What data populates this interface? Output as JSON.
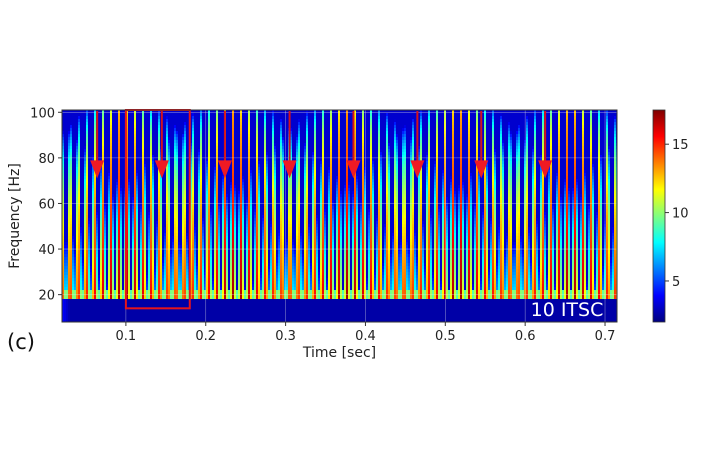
{
  "panel_label": "(c)",
  "chart_data": {
    "type": "heatmap",
    "title": "",
    "xlabel": "Time [sec]",
    "ylabel": "Frequency [Hz]",
    "annotation": "10 ITSC",
    "xlim": [
      0.02,
      0.715
    ],
    "ylim": [
      8,
      101
    ],
    "x_ticks": [
      0.1,
      0.2,
      0.3,
      0.4,
      0.5,
      0.6,
      0.7
    ],
    "x_tick_labels": [
      "0.1",
      "0.2",
      "0.3",
      "0.4",
      "0.5",
      "0.6",
      "0.7"
    ],
    "y_ticks": [
      20,
      40,
      60,
      80,
      100
    ],
    "y_tick_labels": [
      "20",
      "40",
      "60",
      "80",
      "100"
    ],
    "colorbar": {
      "range": [
        2,
        17.5
      ],
      "ticks": [
        5,
        10,
        15
      ],
      "tick_labels": [
        "5",
        "10",
        "15"
      ],
      "colormap": "jet"
    },
    "spectrogram": {
      "stripe_period_sec": 0.0102,
      "stripe_start_sec": 0.025,
      "freq_cutoff_hz": 19,
      "peak_intensity": 17,
      "floor_intensity": 2
    },
    "arrow_times_sec": [
      0.064,
      0.145,
      0.224,
      0.305,
      0.385,
      0.465,
      0.545,
      0.625
    ],
    "arrow_tip_freq_hz": 71,
    "highlight_box": {
      "t_start": 0.1,
      "t_end": 0.18,
      "f_low": 14,
      "f_high": 101
    },
    "grid": true
  }
}
